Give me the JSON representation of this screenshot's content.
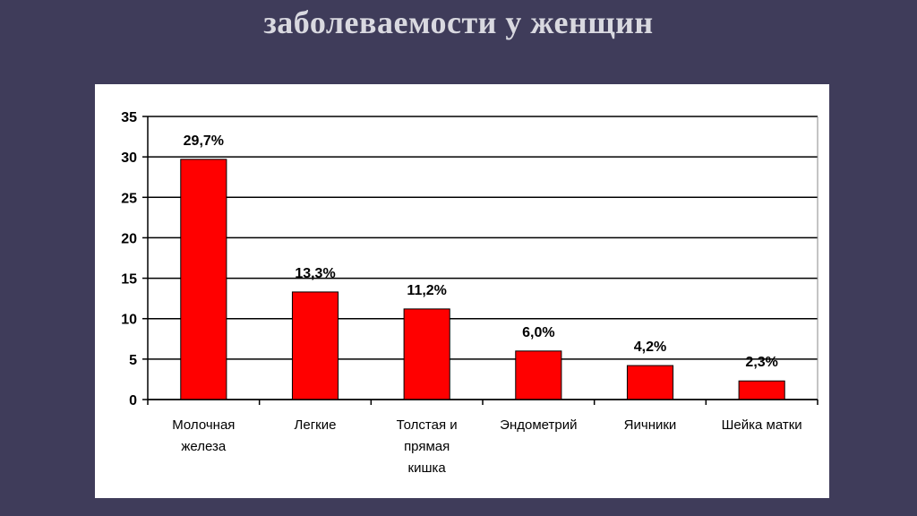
{
  "slide": {
    "title": "заболеваемости у женщин"
  },
  "colors": {
    "background": "#3f3c5a",
    "panel": "#ffffff",
    "bar": "#ff0000",
    "bar_outline": "#000000"
  },
  "chart_data": {
    "type": "bar",
    "categories": [
      [
        "Молочная",
        "железа"
      ],
      [
        "Легкие"
      ],
      [
        "Толстая и",
        "прямая",
        "кишка"
      ],
      [
        "Эндометрий"
      ],
      [
        "Яичники"
      ],
      [
        "Шейка матки"
      ]
    ],
    "values": [
      29.7,
      13.3,
      11.2,
      6.0,
      4.2,
      2.3
    ],
    "data_labels": [
      "29,7%",
      "13,3%",
      "11,2%",
      "6,0%",
      "4,2%",
      "2,3%"
    ],
    "yticks": [
      0,
      5,
      10,
      15,
      20,
      25,
      30,
      35
    ],
    "ylim": [
      0,
      35
    ],
    "grid": true,
    "legend": "none"
  }
}
